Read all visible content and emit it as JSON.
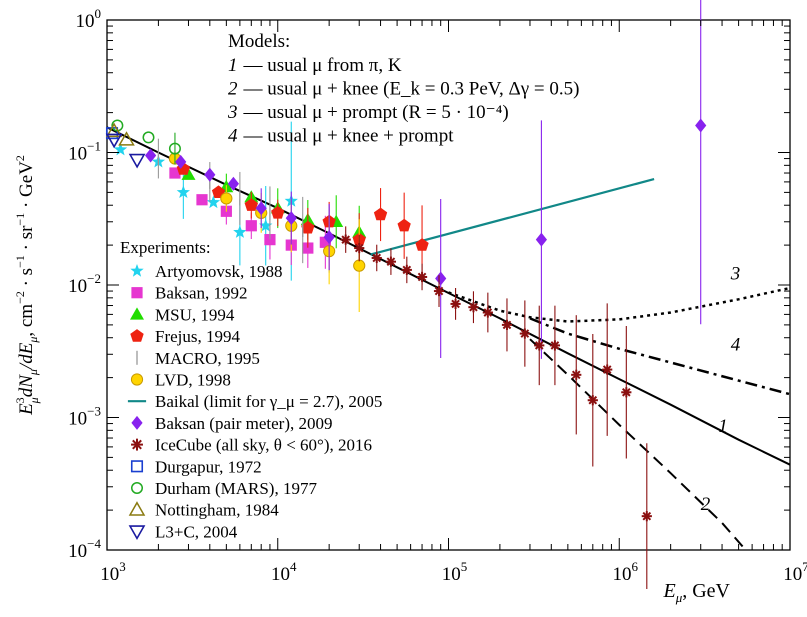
{
  "chart_data": {
    "type": "scatter",
    "title": "",
    "xlabel": "E_μ, GeV",
    "ylabel": "E_μ³ dN_μ/dE_μ, cm⁻² · s⁻¹ · sr⁻¹ · GeV²",
    "xscale": "log",
    "yscale": "log",
    "xlim": [
      1000,
      10000000
    ],
    "ylim": [
      0.0001,
      1
    ],
    "grid": false,
    "x_ticks": [
      {
        "value": 1000,
        "base": "10",
        "exp": "3"
      },
      {
        "value": 10000,
        "base": "10",
        "exp": "4"
      },
      {
        "value": 100000,
        "base": "10",
        "exp": "5"
      },
      {
        "value": 1000000,
        "base": "10",
        "exp": "6"
      },
      {
        "value": 10000000,
        "base": "10",
        "exp": "7"
      }
    ],
    "y_ticks": [
      {
        "value": 1,
        "base": "10",
        "exp": "0"
      },
      {
        "value": 0.1,
        "base": "10",
        "exp": "−1"
      },
      {
        "value": 0.01,
        "base": "10",
        "exp": "−2"
      },
      {
        "value": 0.001,
        "base": "10",
        "exp": "−3"
      },
      {
        "value": 0.0001,
        "base": "10",
        "exp": "−4"
      }
    ],
    "models": {
      "heading": "Models:",
      "entries": [
        {
          "num": "1",
          "text": "— usual μ from π, K"
        },
        {
          "num": "2",
          "text": "— usual μ + knee (E_k = 0.3 PeV, Δγ = 0.5)"
        },
        {
          "num": "3",
          "text": "— usual μ + prompt (R = 5 · 10⁻⁴)"
        },
        {
          "num": "4",
          "text": "— usual μ + knee + prompt"
        }
      ]
    },
    "curves": [
      {
        "name": "1",
        "style": "solid",
        "x": [
          1000,
          2000,
          5000,
          10000,
          20000,
          50000,
          100000,
          200000,
          500000,
          1000000,
          2000000,
          5000000,
          10000000
        ],
        "y": [
          0.155,
          0.1,
          0.057,
          0.038,
          0.0245,
          0.0136,
          0.0087,
          0.0056,
          0.00305,
          0.00195,
          0.00125,
          0.00068,
          0.00044
        ]
      },
      {
        "name": "2",
        "style": "dashed",
        "x": [
          300000,
          500000,
          1000000,
          2000000,
          4000000,
          5500000
        ],
        "y": [
          0.0039,
          0.0021,
          0.00088,
          0.00038,
          0.00016,
          0.0001
        ]
      },
      {
        "name": "3",
        "style": "dotted",
        "x": [
          100000,
          200000,
          300000,
          500000,
          1000000,
          2000000,
          5000000,
          10000000
        ],
        "y": [
          0.0088,
          0.0064,
          0.0057,
          0.0053,
          0.0055,
          0.0062,
          0.0078,
          0.0095
        ]
      },
      {
        "name": "4",
        "style": "dashdot",
        "x": [
          300000,
          500000,
          1000000,
          2000000,
          5000000,
          10000000
        ],
        "y": [
          0.0056,
          0.0043,
          0.0033,
          0.0026,
          0.0019,
          0.0015
        ]
      },
      {
        "name": "Baikal (limit for γ_μ = 2.7), 2005",
        "style": "baikal",
        "x": [
          35000,
          1600000
        ],
        "y": [
          0.017,
          0.063
        ]
      }
    ],
    "curve_labels": [
      {
        "text": "3",
        "x": 4500000,
        "y": 0.011
      },
      {
        "text": "4",
        "x": 4500000,
        "y": 0.0032
      },
      {
        "text": "1",
        "x": 3800000,
        "y": 0.00078
      },
      {
        "text": "2",
        "x": 3000000,
        "y": 0.0002
      }
    ],
    "experiments_heading": "Experiments:",
    "series": [
      {
        "name": "Artyomovsk, 1988",
        "marker": "star",
        "color": "#22d3ee",
        "x": [
          1200,
          2000,
          2800,
          4200,
          6000,
          8500,
          12000
        ],
        "y": [
          0.105,
          0.085,
          0.05,
          0.042,
          0.025,
          0.028,
          0.043
        ],
        "err": [
          null,
          null,
          0.2,
          null,
          0.25,
          0.3,
          0.6
        ]
      },
      {
        "name": "Baksan, 1992",
        "marker": "square",
        "color": "#e636d0",
        "x": [
          2500,
          3600,
          5000,
          7000,
          9000,
          12000,
          15000,
          19000
        ],
        "y": [
          0.07,
          0.044,
          0.036,
          0.028,
          0.022,
          0.02,
          0.019,
          0.021
        ],
        "err": [
          null,
          null,
          0.1,
          0.1,
          0.15,
          0.15,
          0.15,
          0.2
        ]
      },
      {
        "name": "MSU, 1994",
        "marker": "triangle",
        "color": "#22dd00",
        "x": [
          3000,
          5000,
          7000,
          10000,
          15000,
          22000,
          30000
        ],
        "y": [
          0.068,
          0.055,
          0.046,
          0.038,
          0.031,
          0.03,
          0.025
        ],
        "err": [
          null,
          0.1,
          null,
          0.15,
          0.15,
          0.2,
          0.2
        ]
      },
      {
        "name": "Frejus, 1994",
        "marker": "pentagon",
        "color": "#ee2211",
        "x": [
          2800,
          4500,
          7000,
          10000,
          15000,
          20000,
          30000,
          40000,
          55000,
          70000
        ],
        "y": [
          0.075,
          0.05,
          0.04,
          0.035,
          0.027,
          0.03,
          0.022,
          0.034,
          0.028,
          0.02
        ],
        "err": [
          null,
          null,
          0.1,
          0.1,
          0.15,
          0.15,
          0.2,
          0.2,
          0.25,
          0.3
        ]
      },
      {
        "name": "MACRO, 1995",
        "marker": "bar",
        "color": "#999999",
        "x": [
          2000,
          4000,
          6000,
          9000,
          14000,
          20000
        ],
        "y": [
          0.09,
          0.06,
          0.045,
          0.035,
          0.026,
          0.022
        ],
        "err": [
          0.15,
          0.15,
          0.2,
          0.2,
          0.25,
          0.25
        ]
      },
      {
        "name": "LVD, 1998",
        "marker": "circle-filled",
        "color": "#ffd400",
        "x": [
          2500,
          5000,
          8000,
          12000,
          20000,
          30000
        ],
        "y": [
          0.09,
          0.045,
          0.035,
          0.028,
          0.018,
          0.014
        ],
        "err": [
          null,
          0.1,
          0.15,
          0.2,
          0.25,
          0.35
        ]
      },
      {
        "name": "Baikal (limit for γ_μ = 2.7), 2005",
        "marker": "line",
        "color": "#118888",
        "x": [],
        "y": [],
        "err": []
      },
      {
        "name": "Baksan (pair meter), 2009",
        "marker": "diamond",
        "color": "#8822ee",
        "x": [
          1800,
          2700,
          4000,
          5500,
          8000,
          12000,
          20000,
          90000,
          350000,
          3000000
        ],
        "y": [
          0.095,
          0.085,
          0.068,
          0.058,
          0.038,
          0.032,
          0.023,
          0.0112,
          0.022,
          0.16
        ],
        "err": [
          null,
          null,
          null,
          null,
          0.15,
          0.2,
          0.25,
          0.6,
          0.9,
          1.5
        ]
      },
      {
        "name": "IceCube (all sky, θ < 60°), 2016",
        "marker": "asterisk",
        "color": "#8b1010",
        "x": [
          25000,
          30000,
          38000,
          46000,
          57000,
          70000,
          88000,
          110000,
          140000,
          170000,
          220000,
          280000,
          340000,
          420000,
          560000,
          700000,
          850000,
          1100000,
          1450000
        ],
        "y": [
          0.022,
          0.019,
          0.016,
          0.015,
          0.013,
          0.0115,
          0.009,
          0.0072,
          0.0068,
          0.0062,
          0.005,
          0.0043,
          0.0035,
          0.0035,
          0.0021,
          0.00135,
          0.0023,
          0.00155,
          0.00018
        ],
        "err": [
          0.1,
          0.1,
          0.1,
          0.1,
          0.1,
          0.1,
          0.12,
          0.12,
          0.12,
          0.15,
          0.2,
          0.25,
          0.3,
          0.3,
          0.45,
          0.5,
          0.5,
          0.5,
          0.55
        ]
      },
      {
        "name": "Durgapur, 1972",
        "marker": "square-open",
        "color": "#1a3fd0",
        "x": [
          1070
        ],
        "y": [
          0.14
        ],
        "err": [
          null
        ]
      },
      {
        "name": "Durham (MARS), 1977",
        "marker": "circle-open",
        "color": "#22aa22",
        "x": [
          1150,
          1750,
          2500
        ],
        "y": [
          0.16,
          0.13,
          0.107
        ],
        "err": [
          null,
          null,
          0.12
        ]
      },
      {
        "name": "Nottingham, 1984",
        "marker": "triangle-open",
        "color": "#8a7a10",
        "x": [
          1100,
          1300
        ],
        "y": [
          0.145,
          0.125
        ],
        "err": [
          null,
          null
        ]
      },
      {
        "name": "L3+C, 2004",
        "marker": "triangle-down-open",
        "color": "#1a1aa0",
        "x": [
          1100,
          1500
        ],
        "y": [
          0.125,
          0.088
        ],
        "err": [
          null,
          null
        ]
      }
    ]
  }
}
